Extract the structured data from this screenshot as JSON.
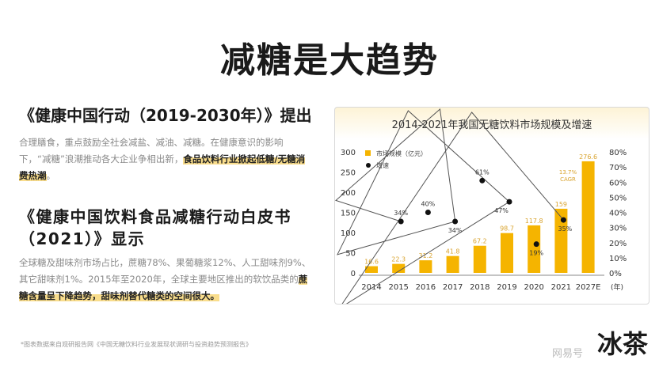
{
  "page_title": "减糖是大趋势",
  "section1": {
    "heading": "《健康中国行动（2019-2030年）》提出",
    "text": "合理膳食，重点鼓励全社会减盐、减油、减糖。在健康意识的影响下，“减糖”浪潮推动各大企业争相出新，",
    "highlight": "食品饮料行业掀起低糖/无糖消费热潮",
    "end": "。"
  },
  "section2": {
    "heading": "《健康中国饮料食品减糖行动白皮书（2021）》显示",
    "text": "全球糖及甜味剂市场占比，蔗糖78%、果葡糖浆12%、人工甜味剂9%、其它甜味剂1%。2015年至2020年，全球主要地区推出的软饮品类的",
    "highlight": "蔗糖含量呈下降趋势，甜味剂替代糖类的空间很大。"
  },
  "footnote": "*图表数据来自观研报告网《中国无糖饮料行业发展现状调研与投资趋势预测报告》",
  "logo": "冰茶",
  "watermark": "网易号",
  "colors": {
    "bar": "#f5b400",
    "line": "#555555",
    "dot": "#111111",
    "highlight": "#f9dd8c"
  },
  "chart_data": {
    "type": "bar+line",
    "title": "2014-2021年我国无糖饮料市场规模及增速",
    "categories": [
      "2014",
      "2015",
      "2016",
      "2017",
      "2018",
      "2019",
      "2020",
      "2021",
      "2027E"
    ],
    "x_unit": "(年)",
    "series": [
      {
        "name": "市场规模（亿元）",
        "type": "bar",
        "axis": "left",
        "values": [
          16.6,
          22.3,
          31.2,
          41.8,
          67.2,
          98.7,
          117.8,
          159,
          276.6
        ],
        "labels": [
          "16.6",
          "22.3",
          "31.2",
          "41.8",
          "67.2",
          "98.7",
          "117.8",
          "159",
          "276.6"
        ]
      },
      {
        "name": "增速",
        "type": "line",
        "axis": "right",
        "values": [
          null,
          34,
          40,
          34,
          61,
          47,
          19,
          35,
          null
        ],
        "labels": [
          "",
          "34%",
          "40%",
          "34%",
          "61%",
          "47%",
          "19%",
          "35%",
          ""
        ]
      }
    ],
    "left_axis": {
      "range": [
        0,
        300
      ],
      "ticks": [
        "0",
        "50",
        "100",
        "150",
        "200",
        "250",
        "300"
      ]
    },
    "right_axis": {
      "range": [
        0,
        80
      ],
      "ticks": [
        "0%",
        "10%",
        "20%",
        "30%",
        "40%",
        "50%",
        "60%",
        "70%",
        "80%"
      ]
    },
    "annotation": "13.7%\nCAGR",
    "legend": "top-left",
    "grid": false
  }
}
